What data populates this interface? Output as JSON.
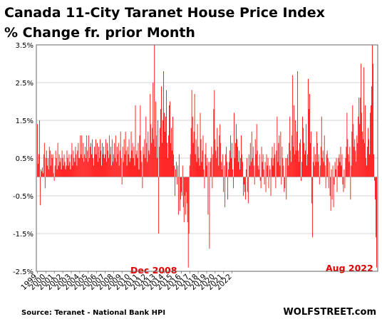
{
  "chart_data": {
    "type": "bar",
    "title": "Canada 11-City Taranet House Price Index",
    "subtitle": "% Change fr. prior Month",
    "source": "Source: Teranet - National Bank HPI",
    "brand": "WOLFSTREET.com",
    "ylim": [
      -2.5,
      3.5
    ],
    "yticks": [
      "3.5%",
      "2.5%",
      "1.5%",
      "0.5%",
      "-0.5%",
      "-1.5%",
      "-2.5%"
    ],
    "ytick_values": [
      3.5,
      2.5,
      1.5,
      0.5,
      -0.5,
      -1.5,
      -2.5
    ],
    "xticks": [
      "1999",
      "2000",
      "2001",
      "2002",
      "2003",
      "2004",
      "2005",
      "2006",
      "2007",
      "2008",
      "2009",
      "2010",
      "2011",
      "2012",
      "2013",
      "2014",
      "2015",
      "2016",
      "2017",
      "2018",
      "2019",
      "2020",
      "2021",
      "2022"
    ],
    "grid": true,
    "bar_color": "#ff0000",
    "annotations": [
      {
        "text": "Dec 2008",
        "color": "#e00000"
      },
      {
        "text": "Aug 2022",
        "color": "#e00000"
      }
    ],
    "x_start": "1999-01",
    "x_end": "2022-08",
    "values": [
      1.4,
      0.35,
      0.6,
      1.5,
      -0.75,
      0.2,
      0.15,
      0.25,
      0.1,
      0.6,
      0.9,
      -0.3,
      0.5,
      0.7,
      0.3,
      0.5,
      0.2,
      0.8,
      0.7,
      0.3,
      0.6,
      0.5,
      0.6,
      0.1,
      -0.1,
      0.3,
      0.7,
      0.5,
      0.2,
      0.9,
      0.3,
      0.6,
      0.4,
      0.5,
      0.2,
      0.7,
      0.5,
      0.3,
      0.6,
      0.4,
      0.2,
      0.3,
      0.7,
      0.5,
      0.3,
      0.6,
      0.4,
      0.2,
      0.6,
      0.9,
      0.3,
      0.7,
      0.5,
      0.4,
      0.8,
      0.6,
      0.3,
      0.7,
      0.9,
      0.5,
      0.5,
      1.1,
      0.6,
      1.1,
      0.5,
      0.9,
      0.4,
      0.6,
      0.8,
      0.5,
      1.1,
      0.7,
      0.4,
      1.1,
      0.5,
      0.8,
      0.9,
      0.6,
      1.0,
      0.5,
      0.3,
      0.8,
      0.6,
      1.0,
      0.6,
      0.9,
      0.4,
      0.8,
      0.5,
      1.0,
      0.7,
      0.3,
      0.9,
      0.6,
      0.8,
      0.5,
      0.6,
      1.0,
      0.4,
      0.9,
      0.7,
      0.5,
      1.1,
      0.6,
      0.8,
      0.3,
      1.0,
      0.4,
      0.6,
      0.9,
      0.5,
      1.1,
      0.4,
      0.8,
      0.6,
      0.9,
      0.3,
      0.7,
      1.2,
      0.5,
      -0.2,
      0.8,
      0.4,
      1.0,
      0.6,
      1.2,
      0.7,
      0.3,
      0.8,
      0.6,
      1.0,
      0.4,
      0.5,
      1.2,
      0.7,
      0.9,
      0.5,
      0.8,
      0.3,
      1.9,
      0.6,
      0.7,
      0.5,
      0.9,
      0.2,
      1.1,
      1.9,
      0.7,
      0.4,
      -0.3,
      0.8,
      0.6,
      1.0,
      0.5,
      1.6,
      0.9,
      0.4,
      1.2,
      0.7,
      0.6,
      2.2,
      1.4,
      0.9,
      1.3,
      2.5,
      1.0,
      3.5,
      0.8,
      2.0,
      1.1,
      0.5,
      1.5,
      -1.5,
      0.8,
      1.3,
      1.8,
      2.4,
      0.9,
      1.5,
      2.8,
      1.7,
      1.2,
      1.6,
      2.3,
      0.9,
      0.5,
      1.1,
      1.9,
      2.0,
      0.9,
      1.3,
      0.7,
      1.6,
      0.6,
      0.3,
      -0.5,
      0.2,
      0.4,
      -0.2,
      0.3,
      -1.0,
      0.6,
      -0.9,
      -0.6,
      -0.4,
      -0.5,
      0.3,
      -0.8,
      -1.2,
      -0.5,
      -1.0,
      -0.4,
      -0.7,
      -1.2,
      -2.4,
      -1.5,
      0.3,
      0.6,
      1.3,
      2.3,
      1.6,
      0.9,
      1.2,
      2.2,
      0.6,
      1.0,
      0.4,
      1.4,
      0.8,
      0.5,
      0.3,
      1.7,
      1.0,
      0.4,
      0.7,
      1.1,
      0.2,
      -0.3,
      0.6,
      0.9,
      0.3,
      0.5,
      -1.0,
      0.4,
      -1.9,
      0.4,
      0.5,
      0.8,
      -0.3,
      0.6,
      1.8,
      2.3,
      1.0,
      0.7,
      0.5,
      1.3,
      0.8,
      0.3,
      1.1,
      1.4,
      0.9,
      0.4,
      0.2,
      0.6,
      -0.4,
      0.3,
      -0.8,
      0.6,
      0.8,
      0.4,
      -0.6,
      0.2,
      0.4,
      0.7,
      1.1,
      0.5,
      0.9,
      0.2,
      -0.3,
      1.7,
      0.5,
      0.9,
      1.4,
      1.0,
      0.8,
      0.4,
      0.7,
      0.2,
      0.5,
      1.1,
      0.6,
      0.4,
      -0.5,
      -0.2,
      -0.4,
      -0.6,
      0.2,
      0.5,
      -0.4,
      -0.7,
      0.6,
      0.3,
      0.9,
      0.4,
      1.2,
      0.5,
      0.8,
      0.3,
      -0.2,
      1.0,
      0.6,
      1.4,
      0.7,
      0.3,
      0.2,
      0.6,
      -0.1,
      -0.3,
      0.8,
      0.4,
      0.6,
      0.2,
      -0.2,
      0.4,
      -0.4,
      0.6,
      0.3,
      0.5,
      -0.3,
      0.3,
      0.2,
      -0.5,
      0.5,
      0.8,
      0.3,
      0.5,
      0.9,
      0.6,
      -0.3,
      0.7,
      1.6,
      0.4,
      0.9,
      1.1,
      0.3,
      1.2,
      -0.2,
      0.8,
      0.5,
      0.3,
      -0.4,
      -0.3,
      0.5,
      -0.6,
      0.5,
      0.6,
      0.3,
      0.9,
      1.6,
      0.7,
      0.4,
      1.1,
      2.7,
      0.8,
      1.9,
      0.6,
      1.5,
      0.7,
      1.2,
      2.8,
      0.7,
      0.4,
      0.9,
      1.0,
      -0.1,
      0.4,
      1.6,
      1.3,
      0.9,
      0.6,
      0.7,
      1.4,
      0.3,
      0.6,
      2.6,
      1.8,
      2.2,
      0.9,
      1.2,
      -0.7,
      -1.6,
      0.4,
      0.8,
      0.3,
      0.6,
      0.4,
      1.2,
      0.9,
      0.4,
      0.6,
      -0.2,
      0.3,
      0.8,
      1.6,
      0.5,
      0.7,
      0.4,
      1.1,
      0.3,
      -0.3,
      0.6,
      0.7,
      0.5,
      -0.3,
      0.4,
      -0.5,
      -0.9,
      0.2,
      -0.6,
      0.3,
      -0.8,
      -0.2,
      0.4,
      0.2,
      0.5,
      -0.4,
      0.3,
      0.5,
      0.6,
      0.4,
      0.8,
      0.3,
      0.6,
      -0.2,
      -0.4,
      0.2,
      -0.3,
      0.5,
      0.8,
      1.7,
      1.0,
      0.6,
      0.4,
      0.8,
      -0.6,
      0.3,
      1.2,
      1.9,
      1.4,
      0.8,
      1.0,
      0.7,
      0.4,
      1.1,
      0.9,
      1.6,
      2.1,
      1.4,
      2.1,
      3.0,
      1.7,
      1.2,
      1.0,
      2.9,
      0.9,
      1.9,
      0.5,
      0.3,
      0.8,
      1.3,
      1.0,
      0.6,
      1.7,
      1.9,
      2.4,
      3.5,
      3.0,
      0.6,
      -0.1,
      -0.6,
      -1.6,
      -2.4
    ]
  }
}
